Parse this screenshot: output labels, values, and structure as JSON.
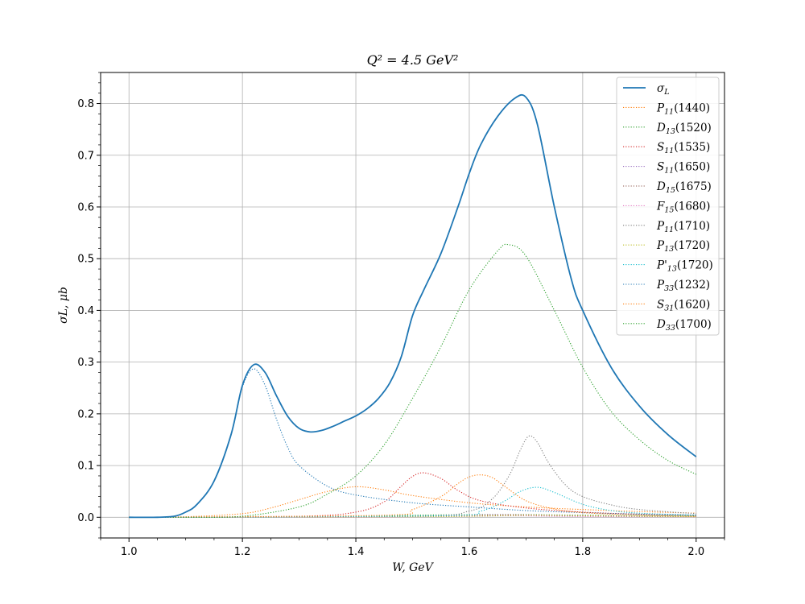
{
  "chart_data": {
    "type": "line",
    "title": "Q² = 4.5 GeV²",
    "xlabel": "W, GeV",
    "ylabel": "σL, μb",
    "xlim": [
      0.95,
      2.05
    ],
    "ylim": [
      -0.04,
      0.86
    ],
    "x_ticks": [
      1.0,
      1.2,
      1.4,
      1.6,
      1.8,
      2.0
    ],
    "x_tick_labels": [
      "1.0",
      "1.2",
      "1.4",
      "1.6",
      "1.8",
      "2.0"
    ],
    "y_ticks": [
      0.0,
      0.1,
      0.2,
      0.3,
      0.4,
      0.5,
      0.6,
      0.7,
      0.8
    ],
    "y_tick_labels": [
      "0.0",
      "0.1",
      "0.2",
      "0.3",
      "0.4",
      "0.5",
      "0.6",
      "0.7",
      "0.8"
    ],
    "grid": true,
    "legend_position": "top-right",
    "series": [
      {
        "name": "σL",
        "label_main": "σ",
        "label_sub": "L",
        "label_rest": "",
        "color": "#1f77b4",
        "style": "solid",
        "x": [
          1.0,
          1.05,
          1.08,
          1.1,
          1.12,
          1.15,
          1.18,
          1.2,
          1.22,
          1.24,
          1.26,
          1.28,
          1.3,
          1.32,
          1.34,
          1.36,
          1.38,
          1.4,
          1.42,
          1.44,
          1.46,
          1.48,
          1.5,
          1.52,
          1.55,
          1.58,
          1.6,
          1.62,
          1.65,
          1.68,
          1.7,
          1.72,
          1.75,
          1.78,
          1.8,
          1.85,
          1.9,
          1.95,
          2.0
        ],
        "y": [
          0.0,
          0.0,
          0.002,
          0.01,
          0.025,
          0.07,
          0.16,
          0.255,
          0.295,
          0.28,
          0.235,
          0.195,
          0.172,
          0.165,
          0.168,
          0.176,
          0.186,
          0.196,
          0.21,
          0.23,
          0.26,
          0.31,
          0.39,
          0.44,
          0.51,
          0.6,
          0.665,
          0.72,
          0.775,
          0.81,
          0.812,
          0.76,
          0.6,
          0.46,
          0.4,
          0.29,
          0.215,
          0.16,
          0.117
        ]
      },
      {
        "name": "P11(1440)",
        "label_main": "P",
        "label_sub": "11",
        "label_rest": "(1440)",
        "color": "#ff7f0e",
        "style": "dotted",
        "x": [
          1.0,
          1.1,
          1.2,
          1.25,
          1.3,
          1.35,
          1.4,
          1.45,
          1.5,
          1.6,
          1.7,
          1.8,
          1.9,
          2.0
        ],
        "y": [
          0.0,
          0.001,
          0.007,
          0.018,
          0.034,
          0.05,
          0.059,
          0.053,
          0.042,
          0.028,
          0.02,
          0.015,
          0.011,
          0.008
        ]
      },
      {
        "name": "D13(1520)",
        "label_main": "D",
        "label_sub": "13",
        "label_rest": "(1520)",
        "color": "#2ca02c",
        "style": "dotted",
        "x": [
          1.0,
          1.2,
          1.3,
          1.4,
          1.5,
          1.6,
          1.7,
          1.8,
          1.9,
          2.0
        ],
        "y": [
          0.0,
          0.0,
          0.001,
          0.002,
          0.004,
          0.005,
          0.005,
          0.004,
          0.003,
          0.002
        ]
      },
      {
        "name": "S11(1535)",
        "label_main": "S",
        "label_sub": "11",
        "label_rest": "(1535)",
        "color": "#d62728",
        "style": "dotted",
        "x": [
          1.0,
          1.3,
          1.4,
          1.45,
          1.48,
          1.5,
          1.52,
          1.55,
          1.58,
          1.62,
          1.7,
          1.8,
          1.9,
          2.0
        ],
        "y": [
          0.0,
          0.002,
          0.01,
          0.03,
          0.06,
          0.079,
          0.086,
          0.075,
          0.052,
          0.032,
          0.018,
          0.01,
          0.006,
          0.004
        ]
      },
      {
        "name": "S11(1650)",
        "label_main": "S",
        "label_sub": "11",
        "label_rest": "(1650)",
        "color": "#9467bd",
        "style": "dotted",
        "x": [
          1.0,
          1.4,
          1.5,
          1.6,
          1.65,
          1.7,
          1.8,
          1.9,
          2.0
        ],
        "y": [
          0.0,
          0.001,
          0.002,
          0.004,
          0.005,
          0.004,
          0.003,
          0.002,
          0.001
        ]
      },
      {
        "name": "D15(1675)",
        "label_main": "D",
        "label_sub": "15",
        "label_rest": "(1675)",
        "color": "#8c564b",
        "style": "dotted",
        "x": [
          1.0,
          1.4,
          1.5,
          1.6,
          1.67,
          1.75,
          1.85,
          2.0
        ],
        "y": [
          0.0,
          0.001,
          0.002,
          0.004,
          0.005,
          0.004,
          0.002,
          0.001
        ]
      },
      {
        "name": "F15(1680)",
        "label_main": "F",
        "label_sub": "15",
        "label_rest": "(1680)",
        "color": "#e377c2",
        "style": "dotted",
        "x": [
          1.0,
          1.4,
          1.5,
          1.6,
          1.68,
          1.75,
          1.85,
          2.0
        ],
        "y": [
          0.0,
          0.0,
          0.001,
          0.002,
          0.003,
          0.002,
          0.001,
          0.001
        ]
      },
      {
        "name": "P11(1710)",
        "label_main": "P",
        "label_sub": "11",
        "label_rest": "(1710)",
        "color": "#7f7f7f",
        "style": "dotted",
        "x": [
          1.0,
          1.5,
          1.6,
          1.64,
          1.67,
          1.69,
          1.705,
          1.72,
          1.74,
          1.77,
          1.8,
          1.85,
          1.9,
          2.0
        ],
        "y": [
          0.0,
          0.002,
          0.012,
          0.035,
          0.08,
          0.13,
          0.157,
          0.145,
          0.105,
          0.062,
          0.04,
          0.024,
          0.015,
          0.007
        ]
      },
      {
        "name": "P13(1720)",
        "label_main": "P",
        "label_sub": "13",
        "label_rest": "(1720)",
        "color": "#bcbd22",
        "style": "dotted",
        "x": [
          1.0,
          1.5,
          1.6,
          1.7,
          1.72,
          1.8,
          1.9,
          2.0
        ],
        "y": [
          0.0,
          0.001,
          0.002,
          0.004,
          0.004,
          0.003,
          0.002,
          0.001
        ]
      },
      {
        "name": "P'13(1720)",
        "label_main": "P'",
        "label_sub": "13",
        "label_rest": "(1720)",
        "color": "#17becf",
        "style": "dotted",
        "x": [
          1.0,
          1.55,
          1.62,
          1.66,
          1.69,
          1.72,
          1.75,
          1.8,
          1.85,
          1.9,
          2.0
        ],
        "y": [
          0.0,
          0.003,
          0.012,
          0.03,
          0.05,
          0.058,
          0.048,
          0.025,
          0.013,
          0.008,
          0.004
        ]
      },
      {
        "name": "P33(1232)",
        "label_main": "P",
        "label_sub": "33",
        "label_rest": "(1232)",
        "color": "#1f77b4",
        "style": "dotted",
        "x": [
          1.0,
          1.05,
          1.08,
          1.1,
          1.12,
          1.15,
          1.18,
          1.2,
          1.22,
          1.24,
          1.26,
          1.28,
          1.3,
          1.35,
          1.4,
          1.5,
          1.6,
          1.7,
          1.8,
          1.9,
          2.0
        ],
        "y": [
          0.0,
          0.0,
          0.002,
          0.01,
          0.025,
          0.07,
          0.16,
          0.252,
          0.287,
          0.255,
          0.19,
          0.135,
          0.1,
          0.06,
          0.043,
          0.028,
          0.02,
          0.013,
          0.009,
          0.006,
          0.004
        ]
      },
      {
        "name": "S31(1620)",
        "label_main": "S",
        "label_sub": "31",
        "label_rest": "(1620)",
        "color": "#ff7f0e",
        "style": "dotted",
        "x": [
          1.0,
          1.45,
          1.5,
          1.55,
          1.58,
          1.6,
          1.62,
          1.64,
          1.66,
          1.7,
          1.75,
          1.8,
          1.9,
          2.0
        ],
        "y": [
          0.0,
          0.004,
          0.015,
          0.04,
          0.065,
          0.078,
          0.082,
          0.077,
          0.062,
          0.032,
          0.016,
          0.009,
          0.004,
          0.002
        ]
      },
      {
        "name": "D33(1700)",
        "label_main": "D",
        "label_sub": "33",
        "label_rest": "(1700)",
        "color": "#2ca02c",
        "style": "dotted",
        "x": [
          1.0,
          1.1,
          1.2,
          1.3,
          1.35,
          1.4,
          1.45,
          1.5,
          1.55,
          1.6,
          1.65,
          1.67,
          1.7,
          1.75,
          1.8,
          1.85,
          1.9,
          1.95,
          2.0
        ],
        "y": [
          0.0,
          0.0,
          0.002,
          0.02,
          0.045,
          0.08,
          0.14,
          0.23,
          0.33,
          0.44,
          0.515,
          0.527,
          0.505,
          0.4,
          0.29,
          0.205,
          0.15,
          0.11,
          0.083
        ]
      }
    ]
  }
}
